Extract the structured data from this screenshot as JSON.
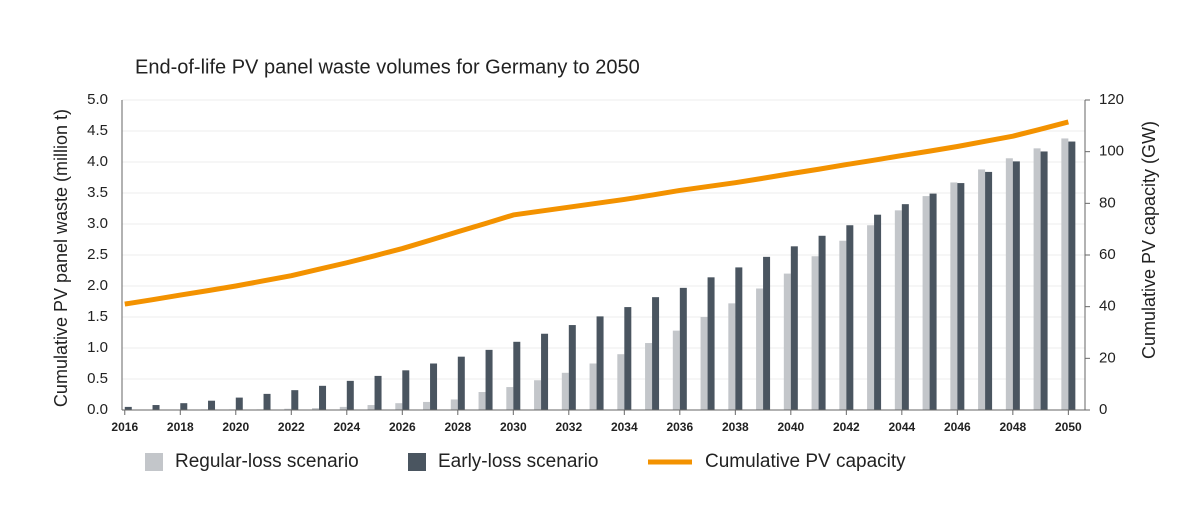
{
  "chart_data": {
    "type": "bar",
    "title": "End-of-life PV panel waste volumes for Germany to 2050",
    "y_label": "Cumulative PV panel waste (million t)",
    "y2_label": "Cumulative PV capacity (GW)",
    "x": [
      2016,
      2017,
      2018,
      2019,
      2020,
      2021,
      2022,
      2023,
      2024,
      2025,
      2026,
      2027,
      2028,
      2029,
      2030,
      2031,
      2032,
      2033,
      2034,
      2035,
      2036,
      2037,
      2038,
      2039,
      2040,
      2041,
      2042,
      2043,
      2044,
      2045,
      2046,
      2047,
      2048,
      2049,
      2050
    ],
    "xlim": [
      2015.9,
      2050.6
    ],
    "xticks": [
      2016,
      2018,
      2020,
      2022,
      2024,
      2026,
      2028,
      2030,
      2032,
      2034,
      2036,
      2038,
      2040,
      2042,
      2044,
      2046,
      2048,
      2050
    ],
    "ylim": [
      0,
      5
    ],
    "yticks": [
      {
        "value": 0,
        "label": "0.0"
      },
      0.5,
      {
        "value": 1,
        "label": "1.0"
      },
      1.5,
      {
        "value": 2,
        "label": "2.0"
      },
      2.5,
      {
        "value": 3,
        "label": "3.0"
      },
      3.5,
      {
        "value": 4,
        "label": "4.0"
      },
      4.5,
      {
        "value": 5,
        "label": "5.0"
      }
    ],
    "y2lim": [
      0,
      120
    ],
    "y2ticks": [
      0,
      20,
      40,
      60,
      80,
      100,
      120
    ],
    "grid": true,
    "series": [
      {
        "name": "Regular-loss scenario",
        "color": "#c3c6ca",
        "type": "bar",
        "values": [
          0,
          0,
          0,
          0.01,
          0.01,
          0.01,
          0.02,
          0.03,
          0.05,
          0.08,
          0.11,
          0.13,
          0.17,
          0.29,
          0.37,
          0.48,
          0.6,
          0.75,
          0.9,
          1.08,
          1.28,
          1.5,
          1.72,
          1.96,
          2.2,
          2.48,
          2.73,
          2.98,
          3.22,
          3.45,
          3.67,
          3.88,
          4.06,
          4.22,
          4.38
        ]
      },
      {
        "name": "Early-loss scenario",
        "color": "#4a5560",
        "type": "bar",
        "values": [
          0.05,
          0.08,
          0.11,
          0.15,
          0.2,
          0.26,
          0.32,
          0.39,
          0.47,
          0.55,
          0.64,
          0.75,
          0.86,
          0.97,
          1.1,
          1.23,
          1.37,
          1.51,
          1.66,
          1.82,
          1.97,
          2.14,
          2.3,
          2.47,
          2.64,
          2.81,
          2.98,
          3.15,
          3.32,
          3.49,
          3.66,
          3.84,
          4.01,
          4.17,
          4.33
        ]
      },
      {
        "name": "Cumulative PV capacity",
        "color": "#f39200",
        "type": "line",
        "axis": "y2",
        "values": [
          41,
          42.7,
          44.5,
          46.2,
          48,
          50,
          52,
          54.5,
          57,
          59.7,
          62.5,
          65.7,
          69,
          72.2,
          75.5,
          77,
          78.5,
          80,
          81.5,
          83.2,
          85,
          86.5,
          88,
          89.7,
          91.5,
          93.2,
          95,
          96.7,
          98.5,
          100.2,
          102,
          104,
          106,
          108.7,
          111.5
        ]
      }
    ]
  }
}
